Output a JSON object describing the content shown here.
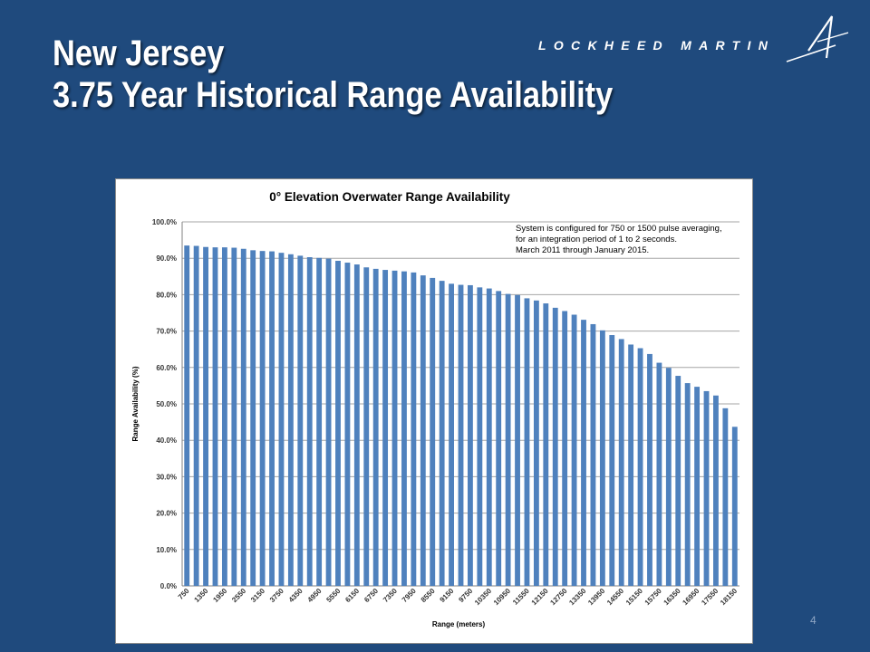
{
  "slide": {
    "title_line1": "New Jersey",
    "title_line2": "3.75 Year Historical Range Availability",
    "logo_text": "LOCKHEED MARTIN",
    "page_number": "4",
    "background_color": "#1f4a7d"
  },
  "chart_data": {
    "type": "bar",
    "title": "0° Elevation Overwater Range Availability",
    "xlabel": "Range (meters)",
    "ylabel": "Range Availability (%)",
    "ylim": [
      0,
      100
    ],
    "y_ticks": [
      "0.0%",
      "10.0%",
      "20.0%",
      "30.0%",
      "40.0%",
      "50.0%",
      "60.0%",
      "70.0%",
      "80.0%",
      "90.0%",
      "100.0%"
    ],
    "grid": true,
    "legend": "none",
    "bar_color": "#4f81bd",
    "annotation": [
      "System is configured for 750 or 1500 pulse averaging,",
      "for an integration period of 1 to 2 seconds.",
      "March 2011 through January 2015."
    ],
    "categories": [
      "750",
      "1050",
      "1350",
      "1650",
      "1950",
      "2250",
      "2550",
      "2850",
      "3150",
      "3450",
      "3750",
      "4050",
      "4350",
      "4650",
      "4950",
      "5250",
      "5550",
      "5850",
      "6150",
      "6450",
      "6750",
      "7050",
      "7350",
      "7650",
      "7950",
      "8250",
      "8550",
      "8850",
      "9150",
      "9450",
      "9750",
      "10050",
      "10350",
      "10650",
      "10950",
      "11250",
      "11550",
      "11850",
      "12150",
      "12450",
      "12750",
      "13050",
      "13350",
      "13650",
      "13950",
      "14250",
      "14550",
      "14850",
      "15150",
      "15450",
      "15750",
      "16050",
      "16350",
      "16650",
      "16950",
      "17250",
      "17550",
      "17850",
      "18150"
    ],
    "values": [
      93.5,
      93.4,
      93.1,
      93.0,
      93.0,
      92.9,
      92.6,
      92.2,
      92.0,
      91.9,
      91.5,
      91.1,
      90.7,
      90.3,
      90.1,
      89.9,
      89.3,
      88.8,
      88.3,
      87.5,
      87.1,
      86.8,
      86.6,
      86.4,
      86.1,
      85.3,
      84.6,
      83.8,
      83.0,
      82.7,
      82.6,
      82.0,
      81.7,
      81.0,
      80.2,
      79.9,
      79.0,
      78.4,
      77.6,
      76.4,
      75.5,
      74.5,
      73.1,
      71.9,
      70.2,
      68.9,
      67.8,
      66.3,
      65.3,
      63.7,
      61.3,
      59.9,
      57.7,
      55.7,
      54.7,
      53.5,
      52.3,
      48.8,
      43.7
    ],
    "tick_labels": [
      "750",
      "1350",
      "1950",
      "2550",
      "3150",
      "3750",
      "4350",
      "4950",
      "5550",
      "6150",
      "6750",
      "7350",
      "7950",
      "8550",
      "9150",
      "9750",
      "10350",
      "10950",
      "11550",
      "12150",
      "12750",
      "13350",
      "13950",
      "14550",
      "15150",
      "15750",
      "16350",
      "16950",
      "17550",
      "18150"
    ]
  }
}
